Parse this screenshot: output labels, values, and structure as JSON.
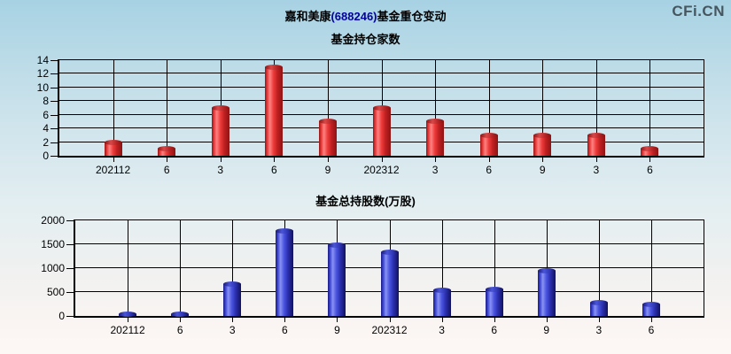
{
  "header": {
    "title_prefix": "嘉和美康",
    "title_code": "(688246)",
    "title_suffix": "基金重仓变动",
    "logo": "CFi.CN"
  },
  "colors": {
    "title_code": "#0000a0",
    "logo": "#47565e",
    "red_bar": "#e03030",
    "blue_bar": "#3743d6",
    "grid": "#000000",
    "background_top": "#a7d2e3",
    "background_bottom": "#fdf7f5"
  },
  "chart_data": [
    {
      "type": "bar",
      "title": "基金持仓家数",
      "categories": [
        "202112",
        "6",
        "3",
        "6",
        "9",
        "202312",
        "3",
        "6",
        "9",
        "3",
        "6"
      ],
      "values": [
        2,
        1,
        7,
        13,
        5,
        7,
        5,
        3,
        3,
        3,
        1
      ],
      "ylim": [
        0,
        14
      ],
      "yticks": [
        0,
        2,
        4,
        6,
        8,
        10,
        12,
        14
      ],
      "xlabel": "",
      "ylabel": "",
      "grid": true,
      "legend_position": "none",
      "bar_color": "#e03030"
    },
    {
      "type": "bar",
      "title": "基金总持股数(万股)",
      "categories": [
        "202112",
        "6",
        "3",
        "6",
        "9",
        "202312",
        "3",
        "6",
        "9",
        "3",
        "6"
      ],
      "values": [
        40,
        30,
        660,
        1780,
        1480,
        1330,
        540,
        550,
        940,
        280,
        250
      ],
      "ylim": [
        0,
        2000
      ],
      "yticks": [
        0,
        500,
        1000,
        1500,
        2000
      ],
      "xlabel": "",
      "ylabel": "",
      "grid": true,
      "legend_position": "none",
      "bar_color": "#3743d6"
    }
  ]
}
